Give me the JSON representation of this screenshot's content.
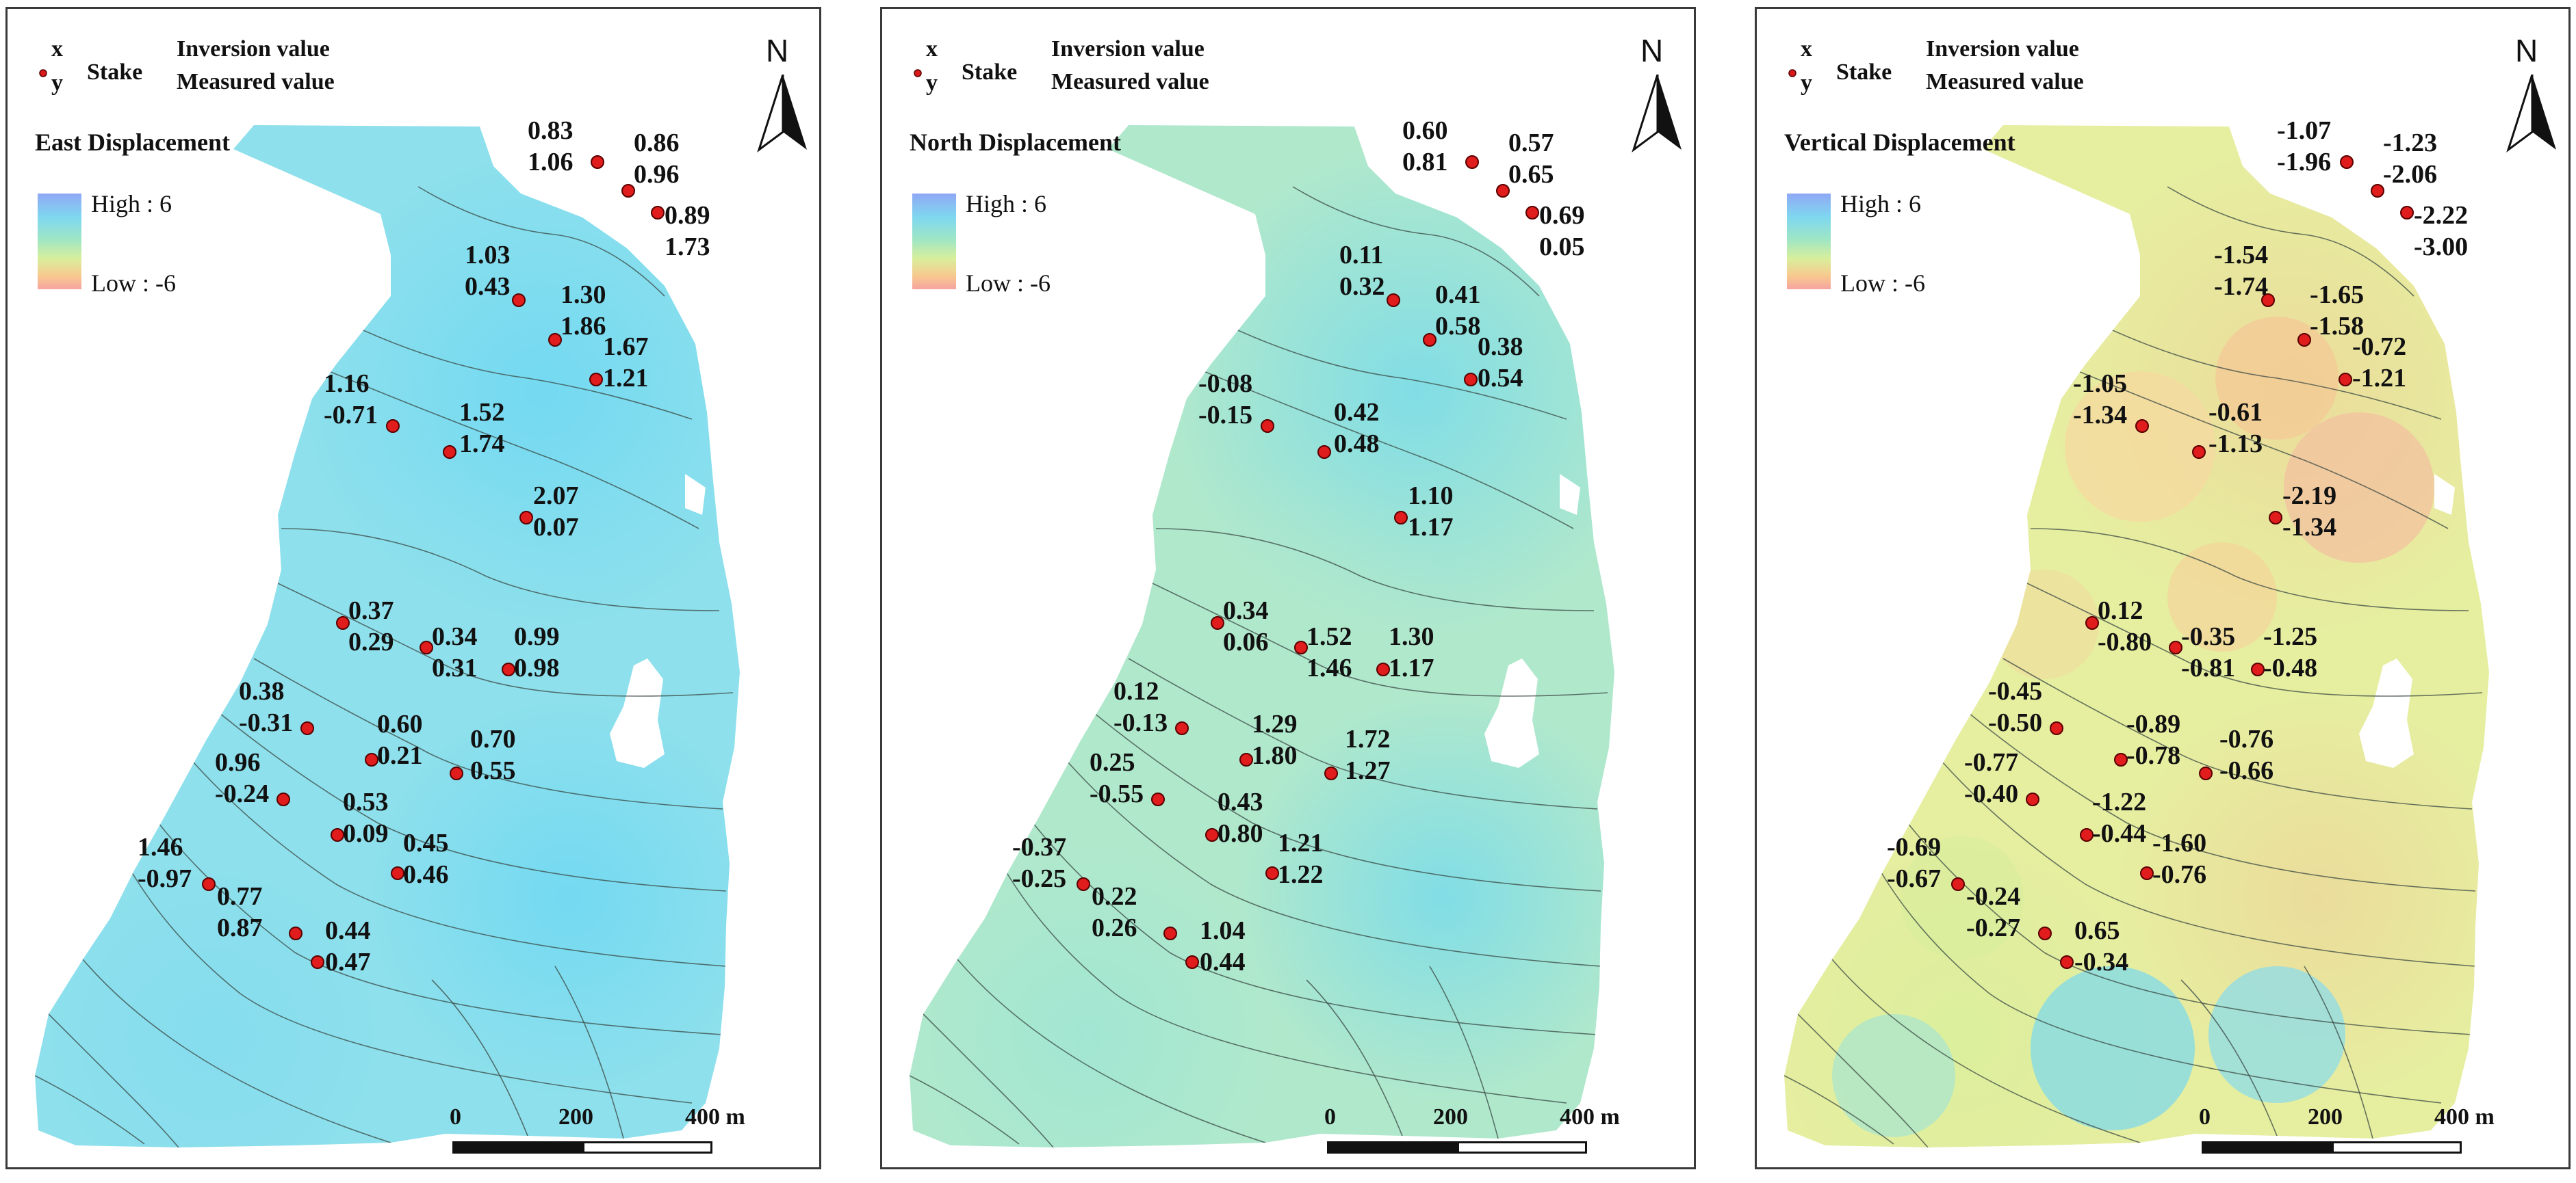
{
  "legend": {
    "x_label": "x",
    "y_label": "y",
    "stake_label": "Stake",
    "inversion_label": "Inversion value",
    "measured_label": "Measured value"
  },
  "colorbar": {
    "high_label": "High : 6",
    "low_label": "Low : -6",
    "colors": [
      "#8fa8f4",
      "#7fd8f0",
      "#9ee6c4",
      "#d8ef9c",
      "#f7c98e",
      "#f6a4a0"
    ]
  },
  "north_label": "N",
  "scale": {
    "ticks": [
      "0",
      "200",
      "400 m"
    ]
  },
  "panels": [
    {
      "title": "East Displacement",
      "stakes": [
        {
          "inv": "0.83",
          "meas": "1.06"
        },
        {
          "inv": "0.86",
          "meas": "0.96"
        },
        {
          "inv": "0.89",
          "meas": "1.73"
        },
        {
          "inv": "1.03",
          "meas": "0.43"
        },
        {
          "inv": "1.30",
          "meas": "1.86"
        },
        {
          "inv": "1.67",
          "meas": "1.21"
        },
        {
          "inv": "1.16",
          "meas": "-0.71"
        },
        {
          "inv": "1.52",
          "meas": "1.74"
        },
        {
          "inv": "2.07",
          "meas": "0.07"
        },
        {
          "inv": "0.37",
          "meas": "0.29"
        },
        {
          "inv": "0.34",
          "meas": "0.31"
        },
        {
          "inv": "0.99",
          "meas": "0.98"
        },
        {
          "inv": "0.38",
          "meas": "-0.31"
        },
        {
          "inv": "0.60",
          "meas": "0.21"
        },
        {
          "inv": "0.70",
          "meas": "0.55"
        },
        {
          "inv": "0.96",
          "meas": "-0.24"
        },
        {
          "inv": "0.53",
          "meas": "0.09"
        },
        {
          "inv": "0.45",
          "meas": "0.46"
        },
        {
          "inv": "1.46",
          "meas": "-0.97"
        },
        {
          "inv": "0.77",
          "meas": "0.87"
        },
        {
          "inv": "0.44",
          "meas": "0.47"
        }
      ]
    },
    {
      "title": "North Displacement",
      "stakes": [
        {
          "inv": "0.60",
          "meas": "0.81"
        },
        {
          "inv": "0.57",
          "meas": "0.65"
        },
        {
          "inv": "0.69",
          "meas": "0.05"
        },
        {
          "inv": "0.11",
          "meas": "0.32"
        },
        {
          "inv": "0.41",
          "meas": "0.58"
        },
        {
          "inv": "0.38",
          "meas": "0.54"
        },
        {
          "inv": "-0.08",
          "meas": "-0.15"
        },
        {
          "inv": "0.42",
          "meas": "0.48"
        },
        {
          "inv": "1.10",
          "meas": "1.17"
        },
        {
          "inv": "0.34",
          "meas": "0.06"
        },
        {
          "inv": "1.52",
          "meas": "1.46"
        },
        {
          "inv": "1.30",
          "meas": "1.17"
        },
        {
          "inv": "0.12",
          "meas": "-0.13"
        },
        {
          "inv": "1.29",
          "meas": "1.80"
        },
        {
          "inv": "1.72",
          "meas": "1.27"
        },
        {
          "inv": "0.25",
          "meas": "-0.55"
        },
        {
          "inv": "0.43",
          "meas": "0.80"
        },
        {
          "inv": "1.21",
          "meas": "1.22"
        },
        {
          "inv": "-0.37",
          "meas": "-0.25"
        },
        {
          "inv": "0.22",
          "meas": "0.26"
        },
        {
          "inv": "1.04",
          "meas": "0.44"
        }
      ]
    },
    {
      "title": "Vertical Displacement",
      "stakes": [
        {
          "inv": "-1.07",
          "meas": "-1.96"
        },
        {
          "inv": "-1.23",
          "meas": "-2.06"
        },
        {
          "inv": "-2.22",
          "meas": "-3.00"
        },
        {
          "inv": "-1.54",
          "meas": "-1.74"
        },
        {
          "inv": "-1.65",
          "meas": "-1.58"
        },
        {
          "inv": "-0.72",
          "meas": "-1.21"
        },
        {
          "inv": "-1.05",
          "meas": "-1.34"
        },
        {
          "inv": "-0.61",
          "meas": "-1.13"
        },
        {
          "inv": "-2.19",
          "meas": "-1.34"
        },
        {
          "inv": "0.12",
          "meas": "-0.80"
        },
        {
          "inv": "-0.35",
          "meas": "-0.81"
        },
        {
          "inv": "-1.25",
          "meas": "-0.48"
        },
        {
          "inv": "-0.45",
          "meas": "-0.50"
        },
        {
          "inv": "-0.89",
          "meas": "-0.78"
        },
        {
          "inv": "-0.76",
          "meas": "-0.66"
        },
        {
          "inv": "-0.77",
          "meas": "-0.40"
        },
        {
          "inv": "-1.22",
          "meas": "-0.44"
        },
        {
          "inv": "-1.60",
          "meas": "-0.76"
        },
        {
          "inv": "-0.69",
          "meas": "-0.67"
        },
        {
          "inv": "-0.24",
          "meas": "-0.27"
        },
        {
          "inv": "0.65",
          "meas": "-0.34"
        }
      ]
    }
  ]
}
